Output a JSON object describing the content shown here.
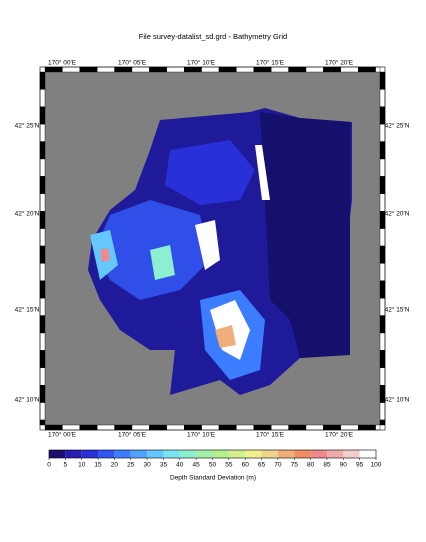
{
  "map": {
    "title": "File survey-datalist_sd.grd - Bathymetry Grid",
    "lon_labels": [
      "170° 00'E",
      "170° 05'E",
      "170° 10'E",
      "170° 15'E",
      "170° 20'E"
    ],
    "lat_labels": [
      "42° 25'N",
      "42° 20'N",
      "42° 15'N",
      "42° 10'N"
    ],
    "colorbar": {
      "label": "Depth Standard Deviation (m)",
      "ticks": [
        0,
        5,
        10,
        15,
        20,
        25,
        30,
        35,
        40,
        45,
        50,
        55,
        60,
        65,
        70,
        75,
        80,
        85,
        90,
        95,
        100
      ],
      "colors": [
        "#1c0f6e",
        "#2a1cb0",
        "#2a30d8",
        "#3055f2",
        "#3c7cff",
        "#50a2ff",
        "#64c8ff",
        "#7ae4f0",
        "#8cf0d0",
        "#a2f0aa",
        "#b6f08c",
        "#d4f08c",
        "#f0f08c",
        "#f0d48c",
        "#f0ae7a",
        "#f08c64",
        "#f08a8a",
        "#f0aaaa",
        "#f4cccc",
        "#ffffff"
      ]
    }
  }
}
